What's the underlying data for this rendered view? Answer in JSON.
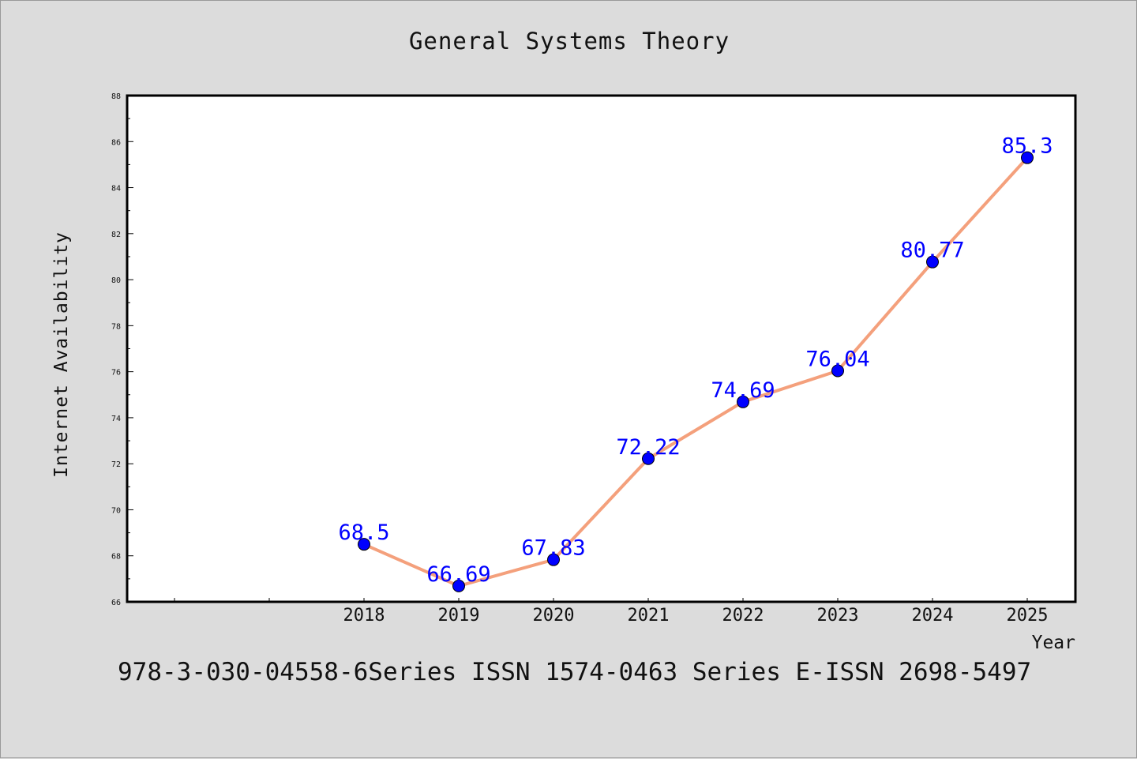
{
  "chart_data": {
    "type": "line",
    "title": "General Systems Theory",
    "xlabel": "Year",
    "ylabel": "Internet Availability",
    "categories": [
      "2018",
      "2019",
      "2020",
      "2021",
      "2022",
      "2023",
      "2024",
      "2025"
    ],
    "series": [
      {
        "values": [
          68.5,
          66.69,
          67.83,
          72.22,
          74.69,
          76.04,
          80.77,
          85.3
        ]
      }
    ],
    "data_labels": [
      "68.5",
      "66.69",
      "67.83",
      "72.22",
      "74.69",
      "76.04",
      "80.77",
      "85.3"
    ],
    "yticks": [
      "66",
      "68",
      "70",
      "72",
      "74",
      "76",
      "78",
      "80",
      "82",
      "84",
      "86",
      "88"
    ],
    "ylim": [
      66,
      88
    ],
    "grid": false,
    "legend": "none",
    "colors": {
      "line": "#f4a07c",
      "marker": "#0000ff",
      "label": "#0000ff",
      "background": "#dcdcdc",
      "plot_background": "#ffffff"
    }
  },
  "footer": "978-3-030-04558-6Series ISSN 1574-0463 Series E-ISSN 2698-5497"
}
